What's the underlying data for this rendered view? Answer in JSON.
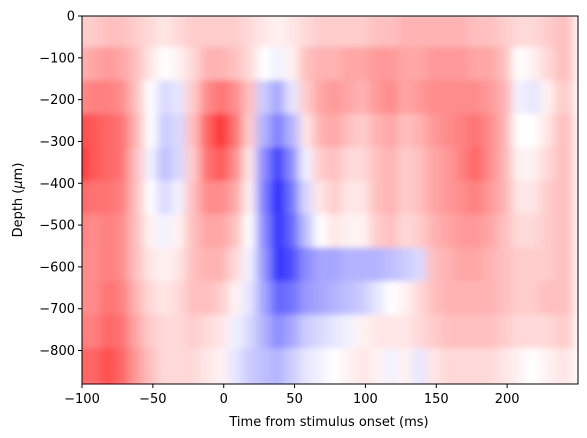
{
  "chart_data": {
    "type": "heatmap",
    "title": "",
    "xlabel": "Time from stimulus onset (ms)",
    "ylabel_prefix": "Depth (",
    "ylabel_unit": "μ",
    "ylabel_suffix": "m)",
    "xlim": [
      -100,
      250
    ],
    "ylim": [
      -880,
      0
    ],
    "x_ticks": [
      -100,
      -50,
      0,
      50,
      100,
      150,
      200
    ],
    "x_tick_labels": [
      "−100",
      "−50",
      "0",
      "50",
      "100",
      "150",
      "200"
    ],
    "y_ticks": [
      0,
      -100,
      -200,
      -300,
      -400,
      -500,
      -600,
      -700,
      -800
    ],
    "y_tick_labels": [
      "0",
      "−100",
      "−200",
      "−300",
      "−400",
      "−500",
      "−600",
      "−700",
      "−800"
    ],
    "colormap": "bwr",
    "color_positive": "#ff0000",
    "color_negative": "#0000ff",
    "color_zero": "#ffffff",
    "grid": false,
    "layer_depths": [
      -40,
      -120,
      -200,
      -280,
      -360,
      -440,
      -520,
      -600,
      -680,
      -760,
      -840
    ],
    "time_points": [
      -100,
      -90,
      -80,
      -70,
      -60,
      -50,
      -40,
      -30,
      -20,
      -10,
      0,
      10,
      20,
      30,
      40,
      50,
      60,
      70,
      80,
      90,
      100,
      110,
      120,
      130,
      140,
      150,
      160,
      170,
      180,
      190,
      200,
      210,
      220,
      230,
      240
    ],
    "values": [
      [
        0.2,
        0.2,
        0.25,
        0.25,
        0.2,
        0.15,
        0.1,
        0.15,
        0.2,
        0.2,
        0.2,
        0.2,
        0.15,
        0.1,
        0.05,
        0.1,
        0.15,
        0.2,
        0.2,
        0.2,
        0.2,
        0.25,
        0.25,
        0.3,
        0.3,
        0.3,
        0.3,
        0.3,
        0.25,
        0.25,
        0.2,
        0.15,
        0.15,
        0.2,
        0.25
      ],
      [
        0.3,
        0.35,
        0.4,
        0.35,
        0.25,
        0.1,
        0.0,
        0.05,
        0.15,
        0.3,
        0.3,
        0.25,
        0.15,
        0.0,
        -0.05,
        0.05,
        0.25,
        0.3,
        0.3,
        0.35,
        0.35,
        0.4,
        0.4,
        0.35,
        0.35,
        0.4,
        0.4,
        0.4,
        0.35,
        0.35,
        0.25,
        0.0,
        0.05,
        0.15,
        0.25
      ],
      [
        0.45,
        0.5,
        0.5,
        0.45,
        0.25,
        0.0,
        -0.15,
        -0.1,
        0.2,
        0.45,
        0.55,
        0.45,
        0.25,
        -0.2,
        -0.35,
        -0.1,
        0.2,
        0.35,
        0.4,
        0.35,
        0.3,
        0.4,
        0.45,
        0.35,
        0.4,
        0.45,
        0.45,
        0.45,
        0.45,
        0.4,
        0.3,
        -0.05,
        -0.1,
        0.05,
        0.2
      ],
      [
        0.7,
        0.65,
        0.6,
        0.55,
        0.3,
        0.0,
        -0.2,
        -0.15,
        0.25,
        0.6,
        0.8,
        0.55,
        0.2,
        -0.3,
        -0.5,
        -0.3,
        0.1,
        0.3,
        0.35,
        0.25,
        0.2,
        0.3,
        0.35,
        0.25,
        0.3,
        0.4,
        0.45,
        0.5,
        0.55,
        0.45,
        0.3,
        0.0,
        0.0,
        0.1,
        0.25
      ],
      [
        0.8,
        0.65,
        0.6,
        0.55,
        0.25,
        -0.05,
        -0.25,
        -0.15,
        0.2,
        0.55,
        0.65,
        0.45,
        0.1,
        -0.45,
        -0.75,
        -0.45,
        -0.05,
        0.2,
        0.25,
        0.15,
        0.15,
        0.25,
        0.3,
        0.2,
        0.25,
        0.35,
        0.4,
        0.5,
        0.6,
        0.45,
        0.3,
        0.05,
        0.05,
        0.15,
        0.25
      ],
      [
        0.6,
        0.55,
        0.55,
        0.5,
        0.25,
        0.0,
        -0.15,
        -0.05,
        0.25,
        0.45,
        0.45,
        0.35,
        0.05,
        -0.5,
        -0.85,
        -0.55,
        -0.15,
        0.1,
        0.2,
        0.1,
        0.1,
        0.25,
        0.3,
        0.2,
        0.25,
        0.35,
        0.4,
        0.45,
        0.5,
        0.4,
        0.3,
        0.1,
        0.1,
        0.2,
        0.25
      ],
      [
        0.5,
        0.45,
        0.5,
        0.45,
        0.25,
        0.05,
        -0.05,
        0.05,
        0.25,
        0.35,
        0.35,
        0.25,
        0.0,
        -0.45,
        -0.8,
        -0.6,
        -0.25,
        0.0,
        0.1,
        0.05,
        0.05,
        0.2,
        0.25,
        0.15,
        0.2,
        0.3,
        0.35,
        0.4,
        0.4,
        0.35,
        0.25,
        0.15,
        0.15,
        0.2,
        0.25
      ],
      [
        0.45,
        0.45,
        0.5,
        0.45,
        0.25,
        0.1,
        0.05,
        0.1,
        0.25,
        0.3,
        0.3,
        0.15,
        -0.05,
        -0.4,
        -0.8,
        -0.7,
        -0.45,
        -0.35,
        -0.35,
        -0.3,
        -0.3,
        -0.3,
        -0.25,
        -0.2,
        -0.15,
        0.25,
        0.3,
        0.35,
        0.35,
        0.3,
        0.25,
        0.2,
        0.2,
        0.2,
        0.25
      ],
      [
        0.45,
        0.45,
        0.55,
        0.5,
        0.3,
        0.15,
        0.1,
        0.15,
        0.25,
        0.25,
        0.2,
        0.05,
        -0.1,
        -0.35,
        -0.6,
        -0.55,
        -0.4,
        -0.35,
        -0.3,
        -0.25,
        -0.2,
        -0.1,
        0.0,
        0.05,
        0.15,
        0.25,
        0.3,
        0.3,
        0.3,
        0.3,
        0.25,
        0.2,
        0.2,
        0.25,
        0.25
      ],
      [
        0.5,
        0.5,
        0.6,
        0.55,
        0.35,
        0.2,
        0.15,
        0.15,
        0.2,
        0.15,
        0.1,
        -0.05,
        -0.15,
        -0.3,
        -0.45,
        -0.35,
        -0.2,
        -0.15,
        -0.1,
        -0.05,
        0.05,
        0.1,
        0.1,
        0.1,
        0.15,
        0.2,
        0.25,
        0.25,
        0.25,
        0.25,
        0.2,
        0.15,
        0.15,
        0.15,
        0.2
      ],
      [
        0.6,
        0.6,
        0.7,
        0.6,
        0.4,
        0.25,
        0.15,
        0.15,
        0.15,
        0.1,
        0.05,
        -0.1,
        -0.2,
        -0.25,
        -0.3,
        -0.2,
        -0.1,
        -0.05,
        0.0,
        0.05,
        0.1,
        0.05,
        -0.05,
        0.05,
        -0.1,
        0.1,
        0.15,
        0.15,
        0.15,
        0.15,
        0.1,
        0.05,
        0.0,
        0.05,
        0.1
      ]
    ]
  }
}
